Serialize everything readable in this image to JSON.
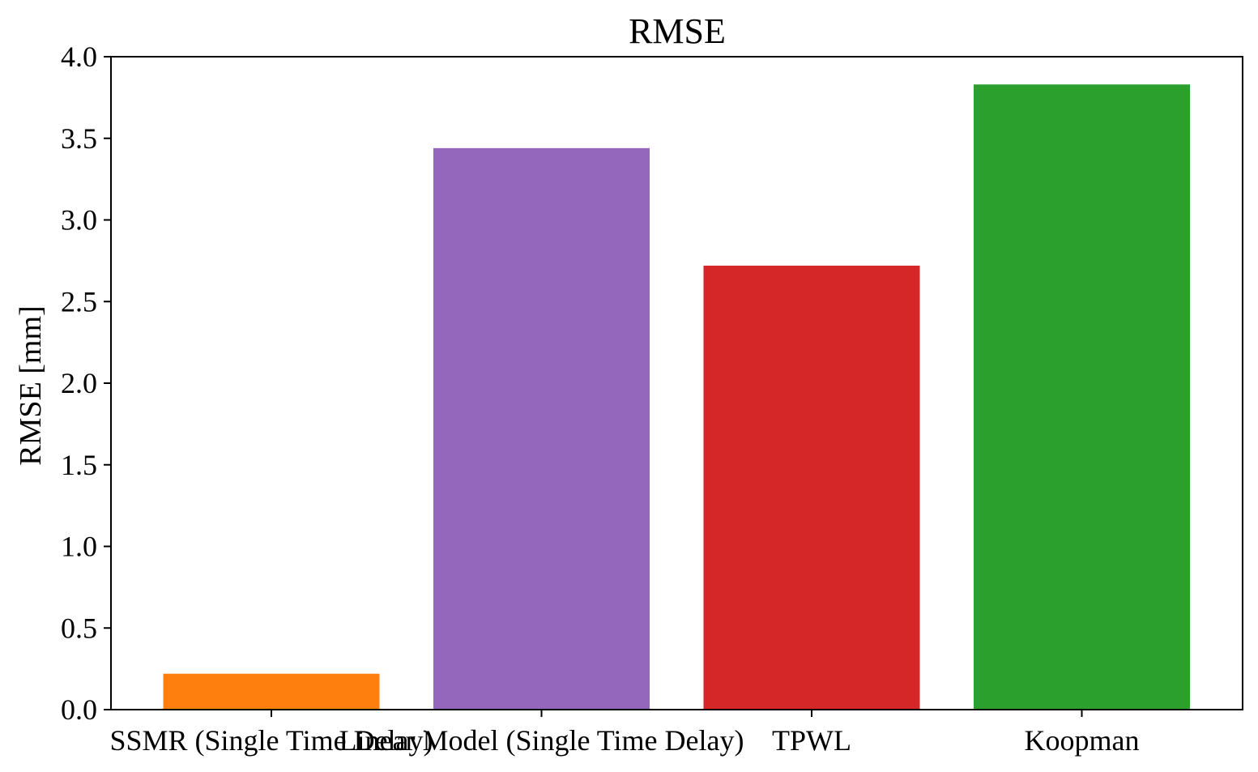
{
  "chart_data": {
    "type": "bar",
    "title": "RMSE",
    "xlabel": "",
    "ylabel": "RMSE [mm]",
    "categories": [
      "SSMR (Single Time Delay)",
      "Linear Model (Single Time Delay)",
      "TPWL",
      "Koopman"
    ],
    "values": [
      0.22,
      3.44,
      2.72,
      3.83
    ],
    "colors": [
      "#ff7f0e",
      "#9467bd",
      "#d62728",
      "#2ca02c"
    ],
    "ylim": [
      0.0,
      4.0
    ],
    "yticks": [
      "0.0",
      "0.5",
      "1.0",
      "1.5",
      "2.0",
      "2.5",
      "3.0",
      "3.5",
      "4.0"
    ],
    "grid": false
  }
}
